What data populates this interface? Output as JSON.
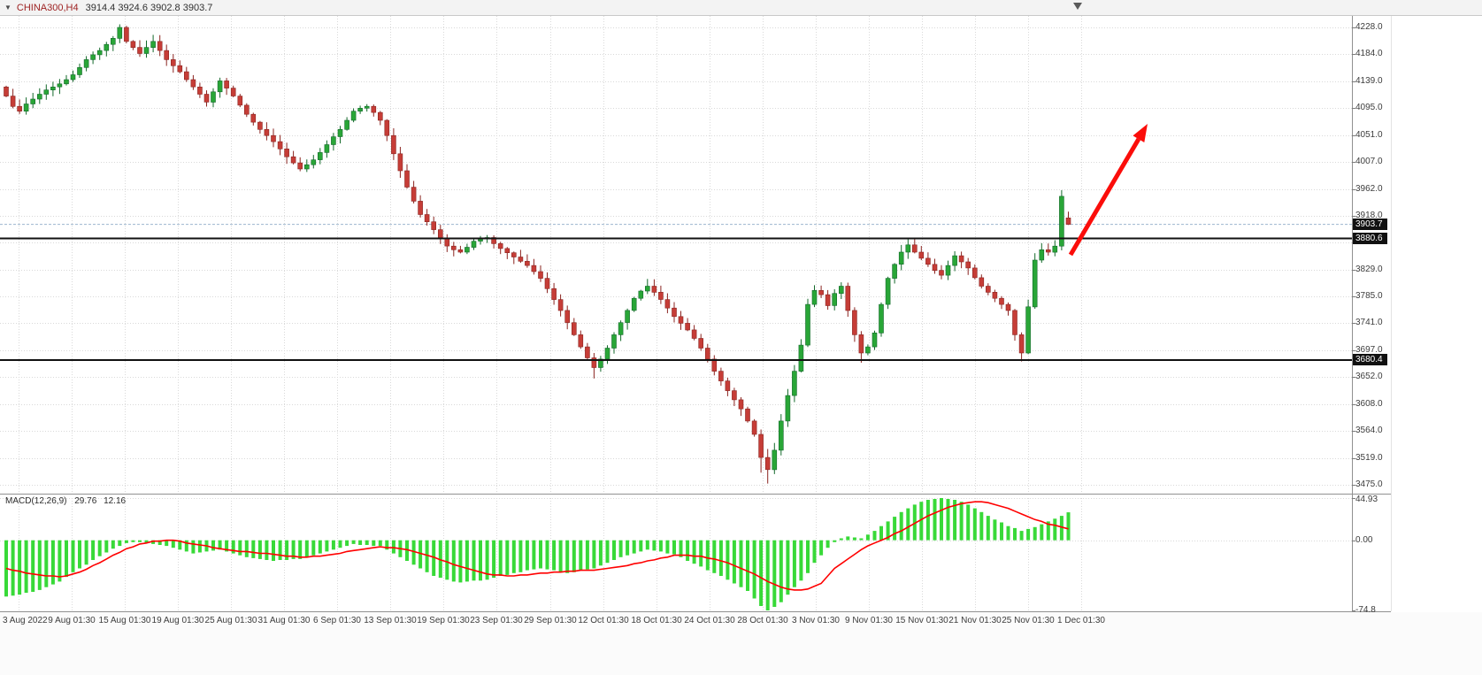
{
  "header": {
    "dropdown_icon": "▼",
    "symbol": "CHINA300,H4",
    "ohlc_text": "3914.4 3924.6 3902.8 3903.7"
  },
  "price_axis": {
    "labels": [
      "4228.0",
      "4184.0",
      "4139.0",
      "4095.0",
      "4051.0",
      "4007.0",
      "3962.0",
      "3918.0",
      "3874.0",
      "3829.0",
      "3785.0",
      "3741.0",
      "3697.0",
      "3652.0",
      "3608.0",
      "3564.0",
      "3519.0",
      "3475.0"
    ]
  },
  "time_axis": {
    "labels": [
      "3 Aug 2022",
      "9 Aug 01:30",
      "15 Aug 01:30",
      "19 Aug 01:30",
      "25 Aug 01:30",
      "31 Aug 01:30",
      "6 Sep 01:30",
      "13 Sep 01:30",
      "19 Sep 01:30",
      "23 Sep 01:30",
      "29 Sep 01:30",
      "12 Oct 01:30",
      "18 Oct 01:30",
      "24 Oct 01:30",
      "28 Oct 01:30",
      "3 Nov 01:30",
      "9 Nov 01:30",
      "15 Nov 01:30",
      "21 Nov 01:30",
      "25 Nov 01:30",
      "1 Dec 01:30"
    ]
  },
  "price_labels": {
    "current": "3903.7",
    "upper_line": "3880.6",
    "lower_line": "3680.4"
  },
  "macd": {
    "name": "MACD(12,26,9)",
    "value_main": "29.76",
    "value_signal": "12.16",
    "axis_labels": [
      "44.93",
      "0.00",
      "-74.8"
    ]
  },
  "colors": {
    "bull": "#29a637",
    "bull_edge": "#13692a",
    "bear": "#c63d37",
    "bear_edge": "#8a2420",
    "macd_hist": "#38d938",
    "macd_signal": "#ff0000",
    "arrow": "#fb0d0a",
    "level_line": "#111111",
    "current_price_line": "#9db6ce",
    "grid": "#d9d9d9",
    "axis_text": "#3c3c3c",
    "tag_bg": "#111111",
    "tag_text": "#ffffff"
  },
  "chart_data": [
    {
      "type": "candlestick",
      "symbol": "CHINA300",
      "timeframe": "H4",
      "title": "CHINA300,H4",
      "ylim": [
        3475,
        4228
      ],
      "y_ticks": [
        4228,
        4184,
        4139,
        4095,
        4051,
        4007,
        3962,
        3918,
        3874,
        3829,
        3785,
        3741,
        3697,
        3652,
        3608,
        3564,
        3519,
        3475
      ],
      "x_ticks": [
        "3 Aug 2022",
        "9 Aug 01:30",
        "15 Aug 01:30",
        "19 Aug 01:30",
        "25 Aug 01:30",
        "31 Aug 01:30",
        "6 Sep 01:30",
        "13 Sep 01:30",
        "19 Sep 01:30",
        "23 Sep 01:30",
        "29 Sep 01:30",
        "12 Oct 01:30",
        "18 Oct 01:30",
        "24 Oct 01:30",
        "28 Oct 01:30",
        "3 Nov 01:30",
        "9 Nov 01:30",
        "15 Nov 01:30",
        "21 Nov 01:30",
        "25 Nov 01:30",
        "1 Dec 01:30"
      ],
      "last_bar": {
        "open": 3914.4,
        "high": 3924.6,
        "low": 3902.8,
        "close": 3903.7
      },
      "levels": {
        "current_price": 3903.7,
        "horizontal_line_upper": 3880.6,
        "horizontal_line_lower": 3680.4
      },
      "first_open": 4130,
      "closes": [
        4115,
        4098,
        4090,
        4102,
        4110,
        4118,
        4125,
        4130,
        4135,
        4142,
        4150,
        4162,
        4175,
        4183,
        4190,
        4200,
        4210,
        4228,
        4205,
        4195,
        4185,
        4195,
        4205,
        4190,
        4175,
        4165,
        4155,
        4142,
        4130,
        4118,
        4105,
        4122,
        4140,
        4128,
        4115,
        4100,
        4085,
        4072,
        4060,
        4050,
        4040,
        4028,
        4015,
        4005,
        3995,
        4002,
        4010,
        4022,
        4035,
        4048,
        4060,
        4075,
        4090,
        4095,
        4098,
        4088,
        4075,
        4050,
        4020,
        3992,
        3965,
        3942,
        3920,
        3908,
        3895,
        3880,
        3868,
        3862,
        3858,
        3866,
        3876,
        3880,
        3882,
        3872,
        3864,
        3857,
        3850,
        3843,
        3836,
        3826,
        3815,
        3798,
        3780,
        3762,
        3742,
        3722,
        3702,
        3684,
        3668,
        3682,
        3700,
        3722,
        3742,
        3762,
        3782,
        3794,
        3802,
        3792,
        3780,
        3766,
        3752,
        3741,
        3730,
        3716,
        3700,
        3682,
        3662,
        3646,
        3630,
        3615,
        3600,
        3580,
        3558,
        3520,
        3500,
        3532,
        3580,
        3622,
        3662,
        3705,
        3772,
        3795,
        3788,
        3770,
        3790,
        3802,
        3762,
        3722,
        3692,
        3702,
        3725,
        3772,
        3815,
        3838,
        3858,
        3870,
        3858,
        3848,
        3838,
        3828,
        3820,
        3836,
        3852,
        3842,
        3832,
        3816,
        3802,
        3792,
        3782,
        3772,
        3762,
        3722,
        3692,
        3768,
        3845,
        3862,
        3858,
        3868,
        3950,
        3903.7
      ],
      "overrides": {
        "17": [
          4210,
          4233,
          4202,
          4228
        ],
        "88": [
          3684,
          3692,
          3650,
          3668
        ],
        "113": [
          3558,
          3566,
          3495,
          3520
        ],
        "114": [
          3520,
          3534,
          3477,
          3500
        ],
        "128": [
          3722,
          3728,
          3676,
          3692
        ],
        "152": [
          3722,
          3726,
          3678,
          3692
        ],
        "158": [
          3868,
          3960,
          3861,
          3950
        ],
        "159": [
          3914.4,
          3924.6,
          3902.8,
          3903.7
        ]
      }
    },
    {
      "type": "bar",
      "name": "MACD(12,26,9)",
      "legend": [
        "histogram",
        "signal"
      ],
      "max": 44.93,
      "min": -74.8,
      "histogram": [
        -60,
        -59,
        -58,
        -56,
        -55,
        -53,
        -50,
        -47,
        -44,
        -39,
        -34,
        -30,
        -26,
        -21,
        -17,
        -13,
        -9,
        -6,
        -3,
        -2,
        -2,
        -3,
        -4,
        -5,
        -6,
        -8,
        -10,
        -12,
        -14,
        -13,
        -12,
        -11,
        -10,
        -12,
        -14,
        -16,
        -18,
        -19,
        -20,
        -21,
        -22,
        -21,
        -21,
        -20,
        -20,
        -18,
        -16,
        -14,
        -12,
        -10,
        -8,
        -6,
        -4,
        -5,
        -5,
        -6,
        -6,
        -10,
        -14,
        -18,
        -22,
        -26,
        -30,
        -34,
        -38,
        -40,
        -42,
        -44,
        -45,
        -44,
        -43,
        -43,
        -42,
        -40,
        -38,
        -37,
        -35,
        -34,
        -32,
        -31,
        -30,
        -31,
        -32,
        -34,
        -35,
        -34,
        -32,
        -31,
        -30,
        -27,
        -24,
        -21,
        -18,
        -16,
        -14,
        -12,
        -10,
        -11,
        -12,
        -14,
        -15,
        -18,
        -22,
        -25,
        -28,
        -32,
        -35,
        -38,
        -42,
        -46,
        -50,
        -54,
        -62,
        -70,
        -74.8,
        -71,
        -66,
        -58,
        -50,
        -43,
        -35,
        -24,
        -16,
        -8,
        -2,
        2,
        4,
        3,
        2,
        6,
        10,
        15,
        20,
        25,
        30,
        34,
        38,
        41,
        43,
        44,
        44.93,
        44,
        43,
        41,
        38,
        34,
        30,
        26,
        22,
        19,
        15,
        13,
        10,
        12,
        14,
        17,
        20,
        23,
        26,
        29.76
      ],
      "signal": [
        -30,
        -32,
        -33,
        -35,
        -36,
        -37,
        -38,
        -38,
        -39,
        -38,
        -36,
        -34,
        -31,
        -27,
        -24,
        -20,
        -16,
        -13,
        -9,
        -7,
        -4,
        -3,
        -1,
        -1,
        0,
        0,
        -1,
        -3,
        -4,
        -5,
        -6,
        -8,
        -9,
        -10,
        -11,
        -12,
        -12,
        -13,
        -14,
        -14,
        -15,
        -16,
        -17,
        -17,
        -18,
        -18,
        -17,
        -17,
        -16,
        -15,
        -14,
        -12,
        -11,
        -10,
        -9,
        -8,
        -7,
        -8,
        -8,
        -9,
        -10,
        -12,
        -14,
        -16,
        -18,
        -21,
        -23,
        -26,
        -28,
        -30,
        -32,
        -34,
        -36,
        -37,
        -37,
        -38,
        -38,
        -37,
        -37,
        -36,
        -35,
        -35,
        -34,
        -34,
        -33,
        -33,
        -32,
        -32,
        -32,
        -31,
        -30,
        -29,
        -28,
        -27,
        -25,
        -24,
        -22,
        -21,
        -19,
        -18,
        -16,
        -16,
        -16,
        -17,
        -17,
        -19,
        -20,
        -22,
        -24,
        -27,
        -30,
        -33,
        -36,
        -40,
        -44,
        -47,
        -50,
        -52,
        -53,
        -53,
        -52,
        -49,
        -46,
        -38,
        -30,
        -25,
        -20,
        -15,
        -10,
        -6,
        -3,
        0,
        3,
        7,
        10,
        14,
        18,
        22,
        26,
        29,
        32,
        35,
        37,
        39,
        40,
        41,
        41,
        40,
        38,
        36,
        34,
        31,
        28,
        25,
        22,
        20,
        17,
        16,
        14,
        12.16
      ]
    }
  ],
  "annotations": {
    "arrow": {
      "tail": [
        1210,
        288
      ],
      "head": [
        1297,
        140
      ]
    }
  }
}
